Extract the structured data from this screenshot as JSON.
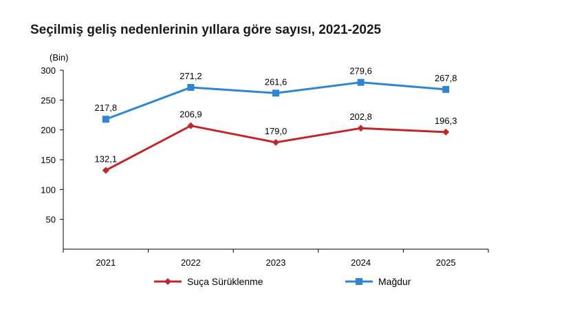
{
  "title": "Seçilmiş geliş nedenlerinin yıllara göre sayısı, 2021-2025",
  "chart_data": {
    "type": "line",
    "title": "Seçilmiş geliş nedenlerinin yıllara göre sayısı, 2021-2025",
    "unit_label": "(Bin)",
    "categories": [
      "2021",
      "2022",
      "2023",
      "2024",
      "2025"
    ],
    "ylim": [
      0,
      300
    ],
    "yticks": [
      50,
      100,
      150,
      200,
      250,
      300
    ],
    "grid": false,
    "legend_position": "bottom",
    "series": [
      {
        "name": "Suça Sürüklenme",
        "values": [
          132.1,
          206.9,
          179.0,
          202.8,
          196.3
        ],
        "labels": [
          "132,1",
          "206,9",
          "179,0",
          "202,8",
          "196,3"
        ],
        "color": "#C0272D",
        "marker": "diamond"
      },
      {
        "name": "Mağdur",
        "values": [
          217.8,
          271.2,
          261.6,
          279.6,
          267.8
        ],
        "labels": [
          "217,8",
          "271,2",
          "261,6",
          "279,6",
          "267,8"
        ],
        "color": "#2E86D0",
        "marker": "square"
      }
    ]
  }
}
